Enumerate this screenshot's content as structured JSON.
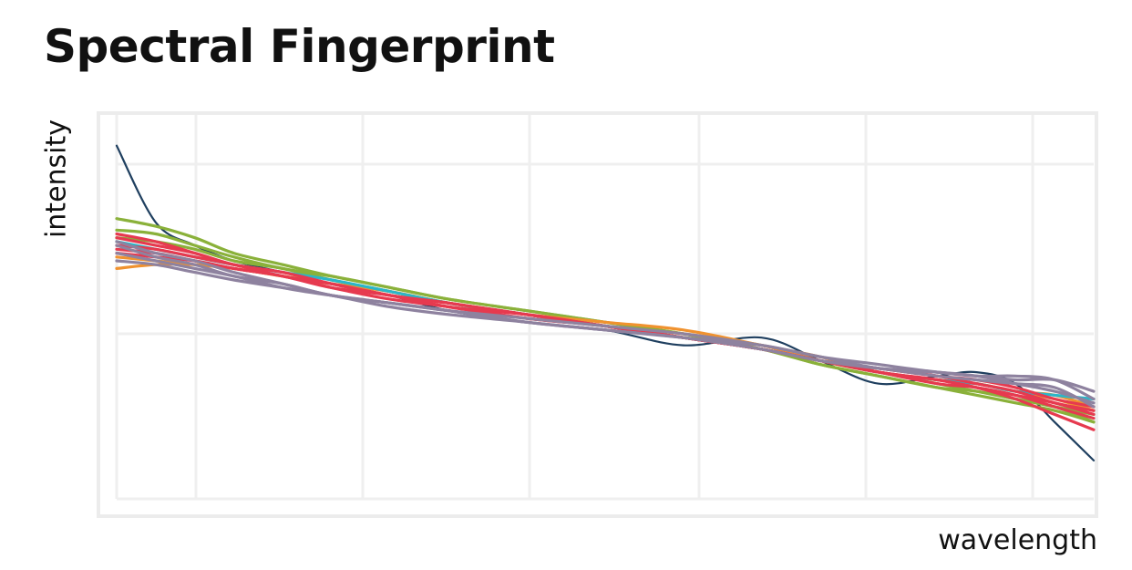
{
  "chart_data": {
    "type": "line",
    "title": "Spectral Fingerprint",
    "xlabel": "wavelength",
    "ylabel": "intensity",
    "xlim": [
      0,
      1
    ],
    "ylim": [
      0,
      1
    ],
    "grid": true,
    "legend": "none",
    "x": [
      0.0,
      0.04,
      0.08,
      0.12,
      0.17,
      0.22,
      0.28,
      0.34,
      0.42,
      0.5,
      0.58,
      0.66,
      0.72,
      0.78,
      0.84,
      0.88,
      0.92,
      0.96,
      1.0
    ],
    "series": [
      {
        "color": "#1f3f5f",
        "values": [
          0.92,
          0.72,
          0.66,
          0.62,
          0.59,
          0.56,
          0.53,
          0.49,
          0.46,
          0.44,
          0.4,
          0.42,
          0.36,
          0.3,
          0.32,
          0.33,
          0.3,
          0.2,
          0.1
        ]
      },
      {
        "color": "#8ab13a",
        "values": [
          0.73,
          0.71,
          0.68,
          0.64,
          0.61,
          0.58,
          0.55,
          0.52,
          0.49,
          0.46,
          0.43,
          0.39,
          0.35,
          0.32,
          0.29,
          0.27,
          0.25,
          0.23,
          0.2
        ]
      },
      {
        "color": "#8ab13a",
        "values": [
          0.7,
          0.69,
          0.66,
          0.63,
          0.6,
          0.58,
          0.55,
          0.52,
          0.49,
          0.46,
          0.43,
          0.39,
          0.36,
          0.33,
          0.3,
          0.28,
          0.26,
          0.24,
          0.22
        ]
      },
      {
        "color": "#8ab13a",
        "values": [
          0.68,
          0.67,
          0.65,
          0.62,
          0.6,
          0.57,
          0.54,
          0.51,
          0.48,
          0.45,
          0.42,
          0.39,
          0.35,
          0.32,
          0.29,
          0.28,
          0.26,
          0.24,
          0.2
        ]
      },
      {
        "color": "#f0922f",
        "values": [
          0.6,
          0.61,
          0.61,
          0.6,
          0.58,
          0.56,
          0.54,
          0.51,
          0.48,
          0.46,
          0.44,
          0.4,
          0.37,
          0.33,
          0.31,
          0.3,
          0.28,
          0.27,
          0.24
        ]
      },
      {
        "color": "#f0922f",
        "values": [
          0.63,
          0.62,
          0.61,
          0.6,
          0.58,
          0.56,
          0.53,
          0.51,
          0.48,
          0.45,
          0.43,
          0.4,
          0.36,
          0.33,
          0.31,
          0.3,
          0.28,
          0.26,
          0.23
        ]
      },
      {
        "color": "#2bb6c8",
        "values": [
          0.67,
          0.65,
          0.63,
          0.61,
          0.59,
          0.57,
          0.54,
          0.51,
          0.48,
          0.45,
          0.42,
          0.39,
          0.36,
          0.33,
          0.31,
          0.3,
          0.28,
          0.27,
          0.26
        ]
      },
      {
        "color": "#e63a4f",
        "values": [
          0.69,
          0.67,
          0.64,
          0.61,
          0.59,
          0.56,
          0.53,
          0.5,
          0.48,
          0.45,
          0.42,
          0.39,
          0.36,
          0.33,
          0.3,
          0.29,
          0.27,
          0.24,
          0.21
        ]
      },
      {
        "color": "#e63a4f",
        "values": [
          0.68,
          0.66,
          0.64,
          0.61,
          0.59,
          0.56,
          0.53,
          0.51,
          0.48,
          0.45,
          0.42,
          0.39,
          0.36,
          0.33,
          0.31,
          0.29,
          0.26,
          0.22,
          0.18
        ]
      },
      {
        "color": "#e63a4f",
        "values": [
          0.66,
          0.65,
          0.63,
          0.61,
          0.58,
          0.56,
          0.53,
          0.51,
          0.48,
          0.45,
          0.42,
          0.39,
          0.36,
          0.33,
          0.31,
          0.29,
          0.27,
          0.25,
          0.22
        ]
      },
      {
        "color": "#e63a4f",
        "values": [
          0.65,
          0.64,
          0.62,
          0.6,
          0.58,
          0.55,
          0.53,
          0.5,
          0.47,
          0.45,
          0.42,
          0.39,
          0.36,
          0.34,
          0.32,
          0.3,
          0.28,
          0.25,
          0.23
        ]
      },
      {
        "color": "#e63a4f",
        "values": [
          0.64,
          0.63,
          0.62,
          0.6,
          0.58,
          0.55,
          0.52,
          0.5,
          0.47,
          0.45,
          0.42,
          0.39,
          0.36,
          0.34,
          0.32,
          0.31,
          0.29,
          0.26,
          0.24
        ]
      },
      {
        "color": "#8e829f",
        "values": [
          0.67,
          0.64,
          0.62,
          0.59,
          0.56,
          0.53,
          0.51,
          0.49,
          0.47,
          0.45,
          0.43,
          0.4,
          0.37,
          0.34,
          0.33,
          0.32,
          0.32,
          0.31,
          0.26
        ]
      },
      {
        "color": "#8e829f",
        "values": [
          0.66,
          0.63,
          0.61,
          0.58,
          0.56,
          0.53,
          0.51,
          0.49,
          0.46,
          0.44,
          0.42,
          0.4,
          0.37,
          0.35,
          0.33,
          0.32,
          0.31,
          0.31,
          0.28
        ]
      },
      {
        "color": "#8e829f",
        "values": [
          0.64,
          0.62,
          0.6,
          0.58,
          0.55,
          0.53,
          0.51,
          0.49,
          0.46,
          0.44,
          0.42,
          0.39,
          0.36,
          0.34,
          0.32,
          0.31,
          0.3,
          0.29,
          0.24
        ]
      },
      {
        "color": "#8e829f",
        "values": [
          0.62,
          0.61,
          0.59,
          0.57,
          0.55,
          0.53,
          0.5,
          0.48,
          0.46,
          0.44,
          0.42,
          0.39,
          0.36,
          0.34,
          0.33,
          0.32,
          0.3,
          0.28,
          0.25
        ]
      }
    ]
  }
}
